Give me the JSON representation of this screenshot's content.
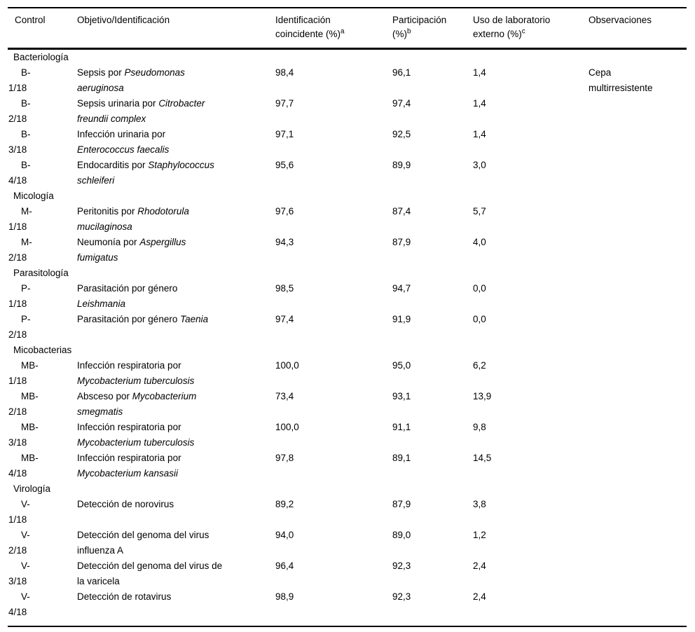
{
  "table": {
    "columns": [
      {
        "id": "control",
        "label_lines": [
          "Control"
        ]
      },
      {
        "id": "objetivo",
        "label_lines": [
          "Objetivo/Identificación"
        ]
      },
      {
        "id": "identificacion",
        "label_lines": [
          "Identificación",
          "coincidente (%)"
        ],
        "sup": "a"
      },
      {
        "id": "participacion",
        "label_lines": [
          "Participación",
          "(%)"
        ],
        "sup": "b"
      },
      {
        "id": "laboratorio",
        "label_lines": [
          "Uso de laboratorio",
          "externo (%)"
        ],
        "sup": "c"
      },
      {
        "id": "observaciones",
        "label_lines": [
          "Observaciones"
        ]
      }
    ],
    "rows": [
      {
        "section": "Bacteriología"
      },
      {
        "control": [
          "B-",
          "1/18"
        ],
        "objetivo": [
          [
            [
              "Sepsis por ",
              0
            ],
            [
              "Pseudomonas",
              1
            ]
          ],
          [
            [
              "aeruginosa",
              1
            ]
          ]
        ],
        "ident": "98,4",
        "part": "96,1",
        "uso": "1,4",
        "obs": [
          "Cepa",
          "multirresistente"
        ]
      },
      {
        "control": [
          "B-",
          "2/18"
        ],
        "objetivo": [
          [
            [
              "Sepsis urinaria por ",
              0
            ],
            [
              "Citrobacter",
              1
            ]
          ],
          [
            [
              "freundii complex",
              1
            ]
          ]
        ],
        "ident": "97,7",
        "part": "97,4",
        "uso": "1,4",
        "obs": []
      },
      {
        "control": [
          "B-",
          "3/18"
        ],
        "objetivo": [
          [
            [
              "Infección urinaria por",
              0
            ]
          ],
          [
            [
              "Enterococcus faecalis",
              1
            ]
          ]
        ],
        "ident": "97,1",
        "part": "92,5",
        "uso": "1,4",
        "obs": []
      },
      {
        "control": [
          "B-",
          "4/18"
        ],
        "objetivo": [
          [
            [
              "Endocarditis por ",
              0
            ],
            [
              "Staphylococcus",
              1
            ]
          ],
          [
            [
              "schleiferi",
              1
            ]
          ]
        ],
        "ident": "95,6",
        "part": "89,9",
        "uso": "3,0",
        "obs": []
      },
      {
        "section": "Micología"
      },
      {
        "control": [
          "M-",
          "1/18"
        ],
        "objetivo": [
          [
            [
              "Peritonitis por ",
              0
            ],
            [
              "Rhodotorula",
              1
            ]
          ],
          [
            [
              "mucilaginosa",
              1
            ]
          ]
        ],
        "ident": "97,6",
        "part": "87,4",
        "uso": "5,7",
        "obs": []
      },
      {
        "control": [
          "M-",
          "2/18"
        ],
        "objetivo": [
          [
            [
              "Neumonía por ",
              0
            ],
            [
              "Aspergillus",
              1
            ]
          ],
          [
            [
              "fumigatus",
              1
            ]
          ]
        ],
        "ident": "94,3",
        "part": "87,9",
        "uso": "4,0",
        "obs": []
      },
      {
        "section": "Parasitología"
      },
      {
        "control": [
          "P-",
          "1/18"
        ],
        "objetivo": [
          [
            [
              "Parasitación por género",
              0
            ]
          ],
          [
            [
              "Leishmania",
              1
            ]
          ]
        ],
        "ident": "98,5",
        "part": "94,7",
        "uso": "0,0",
        "obs": []
      },
      {
        "control": [
          "P-",
          "2/18"
        ],
        "objetivo": [
          [
            [
              "Parasitación por género ",
              0
            ],
            [
              "Taenia",
              1
            ]
          ]
        ],
        "ident": "97,4",
        "part": "91,9",
        "uso": "0,0",
        "obs": []
      },
      {
        "section": "Micobacterias"
      },
      {
        "control": [
          "MB-",
          "1/18"
        ],
        "objetivo": [
          [
            [
              "Infección respiratoria por",
              0
            ]
          ],
          [
            [
              "Mycobacterium tuberculosis",
              1
            ]
          ]
        ],
        "ident": "100,0",
        "part": "95,0",
        "uso": "6,2",
        "obs": []
      },
      {
        "control": [
          "MB-",
          "2/18"
        ],
        "objetivo": [
          [
            [
              "Absceso por ",
              0
            ],
            [
              "Mycobacterium",
              1
            ]
          ],
          [
            [
              "smegmatis",
              1
            ]
          ]
        ],
        "ident": "73,4",
        "part": "93,1",
        "uso": "13,9",
        "obs": []
      },
      {
        "control": [
          "MB-",
          "3/18"
        ],
        "objetivo": [
          [
            [
              "Infección respiratoria por",
              0
            ]
          ],
          [
            [
              "Mycobacterium tuberculosis",
              1
            ]
          ]
        ],
        "ident": "100,0",
        "part": "91,1",
        "uso": "9,8",
        "obs": []
      },
      {
        "control": [
          "MB-",
          "4/18"
        ],
        "objetivo": [
          [
            [
              "Infección respiratoria por",
              0
            ]
          ],
          [
            [
              "Mycobacterium kansasii",
              1
            ]
          ]
        ],
        "ident": "97,8",
        "part": "89,1",
        "uso": "14,5",
        "obs": []
      },
      {
        "section": "Virología"
      },
      {
        "control": [
          "V-",
          "1/18"
        ],
        "objetivo": [
          [
            [
              "Detección de norovirus",
              0
            ]
          ]
        ],
        "ident": "89,2",
        "part": "87,9",
        "uso": "3,8",
        "obs": []
      },
      {
        "control": [
          "V-",
          "2/18"
        ],
        "objetivo": [
          [
            [
              "Detección del genoma del virus",
              0
            ]
          ],
          [
            [
              "influenza A",
              0
            ]
          ]
        ],
        "ident": "94,0",
        "part": "89,0",
        "uso": "1,2",
        "obs": []
      },
      {
        "control": [
          "V-",
          "3/18"
        ],
        "objetivo": [
          [
            [
              "Detección del genoma del virus de",
              0
            ]
          ],
          [
            [
              "la varicela",
              0
            ]
          ]
        ],
        "ident": "96,4",
        "part": "92,3",
        "uso": "2,4",
        "obs": []
      },
      {
        "control": [
          "V-",
          "4/18"
        ],
        "objetivo": [
          [
            [
              "Detección de rotavirus",
              0
            ]
          ]
        ],
        "ident": "98,9",
        "part": "92,3",
        "uso": "2,4",
        "obs": []
      }
    ],
    "colors": {
      "text": "#000000",
      "rule": "#000000",
      "background": "#ffffff"
    }
  }
}
